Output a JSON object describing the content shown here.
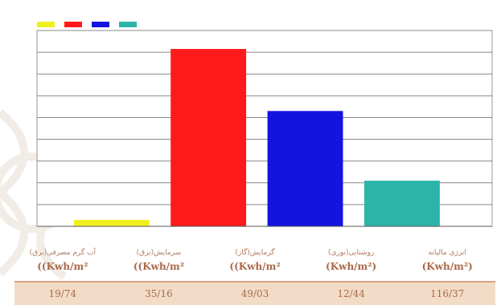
{
  "header": {
    "title": "",
    "left_label": ""
  },
  "colors": {
    "background": "#ffffff",
    "grid": "#888888",
    "table_text": "#a86a4a",
    "table_row_bg": "#f3dcc7"
  },
  "chart_data": {
    "type": "bar",
    "title": "",
    "xlabel": "",
    "ylabel": "",
    "ylim": [
      0,
      9000
    ],
    "grid": true,
    "legend_placement": "top-left",
    "categories": [
      "",
      "",
      "",
      ""
    ],
    "series": [
      {
        "values": [
          300,
          0,
          0,
          0
        ],
        "color": "#f0f020"
      },
      {
        "values": [
          0,
          8150,
          0,
          0
        ],
        "color": "#ff1a1a"
      },
      {
        "values": [
          0,
          0,
          5300,
          0
        ],
        "color": "#1414e0"
      },
      {
        "values": [
          0,
          0,
          0,
          2100
        ],
        "color": "#2bb5a8"
      }
    ],
    "bars": [
      {
        "value": 300,
        "color": "#f0f020"
      },
      {
        "value": 8150,
        "color": "#ff1a1a"
      },
      {
        "value": 5300,
        "color": "#1414e0"
      },
      {
        "value": 2100,
        "color": "#2bb5a8"
      }
    ]
  },
  "table": {
    "headers": [
      {
        "line1": "انرژی مالیانه",
        "line2": "(Kwh/m²)"
      },
      {
        "line1": "روشنایی(نوری)",
        "line2": "(Kwh/m²)"
      },
      {
        "line1": "گرمایش(گاز)",
        "line2": "Kwh/m²))"
      },
      {
        "line1": "سرمایش(برق)",
        "line2": "Kwh/m²))"
      },
      {
        "line1": "آب گرم مصرفی(برق)",
        "line2": "Kwh/m²))"
      }
    ],
    "values": [
      "116/37",
      "12/44",
      "49/03",
      "35/16",
      "19/74"
    ]
  }
}
